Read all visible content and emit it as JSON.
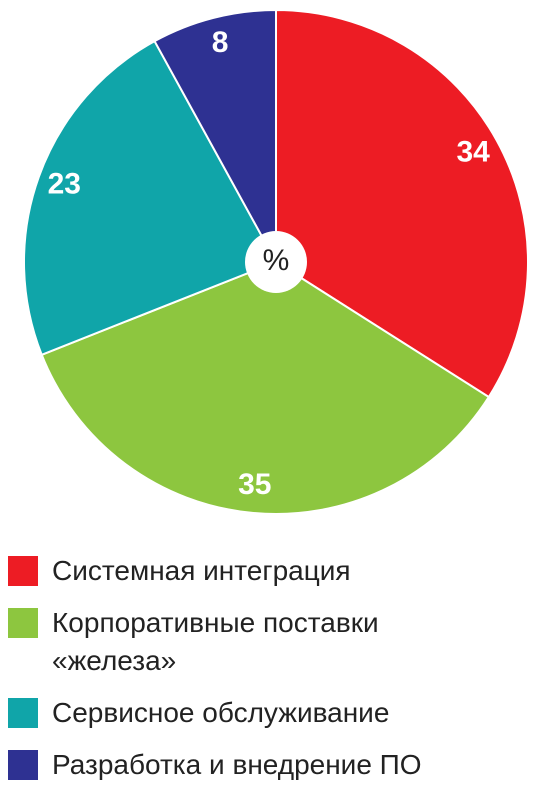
{
  "chart_data": {
    "type": "pie",
    "categories": [
      "Системная интеграция",
      "Корпоративные поставки «железа»",
      "Сервисное обслуживание",
      "Разработка и внедрение ПО"
    ],
    "values": [
      34,
      35,
      23,
      8
    ],
    "colors": [
      "#ed1c24",
      "#8dc63f",
      "#10a5a9",
      "#2e3192"
    ],
    "center_label": "%"
  }
}
